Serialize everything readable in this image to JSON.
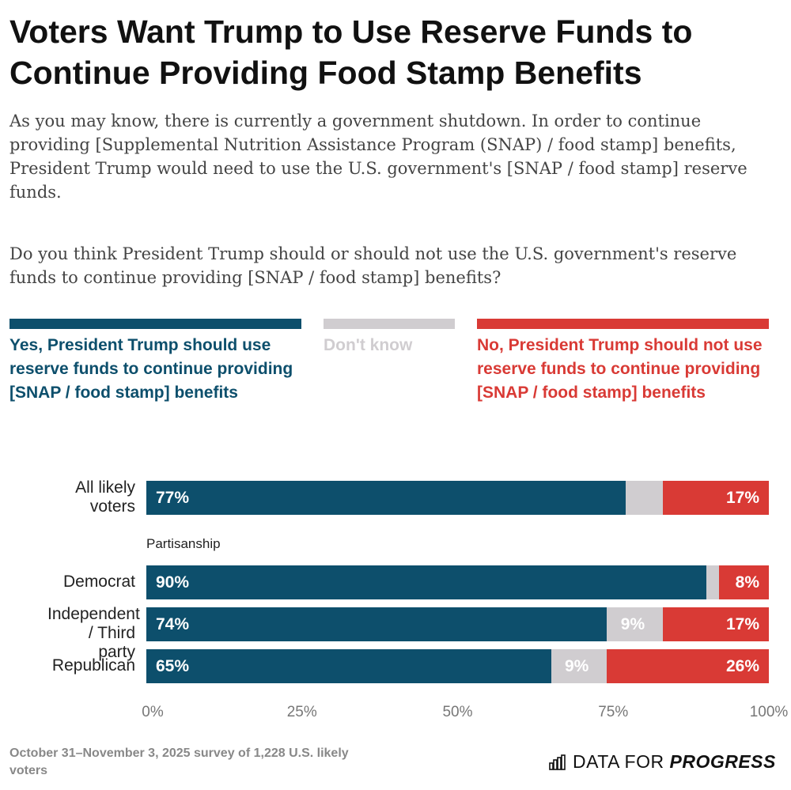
{
  "chart_data": {
    "type": "bar",
    "orientation": "horizontal",
    "stacked": true,
    "title": "Voters Want Trump to Use Reserve Funds to Continue Providing Food Stamp Benefits",
    "subtitle": [
      "As you may know, there is currently a government shutdown. In order to continue providing [Supplemental Nutrition Assistance Program (SNAP) / food stamp] benefits, President Trump would need to use the U.S. government's [SNAP / food stamp] reserve funds.",
      "Do you think President Trump should or should not use the U.S. government's reserve funds to continue providing [SNAP / food stamp] benefits?"
    ],
    "group_label": "Partisanship",
    "categories": [
      "All likely voters",
      "Democrat",
      "Independent / Third party",
      "Republican"
    ],
    "series": [
      {
        "name": "Yes, President Trump should use reserve funds to continue providing [SNAP / food stamp] benefits",
        "color": "#0d4f6c",
        "values": [
          77,
          90,
          74,
          65
        ],
        "labels": [
          "77%",
          "90%",
          "74%",
          "65%"
        ]
      },
      {
        "name": "Don't know",
        "color": "#d0cdd0",
        "values": [
          6,
          2,
          9,
          9
        ],
        "labels": [
          "",
          "",
          "9%",
          "9%"
        ]
      },
      {
        "name": "No, President Trump should not use reserve funds to continue providing [SNAP / food stamp] benefits",
        "color": "#d93a35",
        "values": [
          17,
          8,
          17,
          26
        ],
        "labels": [
          "17%",
          "8%",
          "17%",
          "26%"
        ]
      }
    ],
    "xlim": [
      0,
      100
    ],
    "xticks": [
      "0%",
      "25%",
      "50%",
      "75%",
      "100%"
    ],
    "legend_position": "top",
    "grid": false
  },
  "footnote": "October 31–November 3, 2025 survey of 1,228 U.S. likely voters",
  "logo": {
    "text_light": "DATA FOR",
    "text_bold": "PROGRESS"
  }
}
